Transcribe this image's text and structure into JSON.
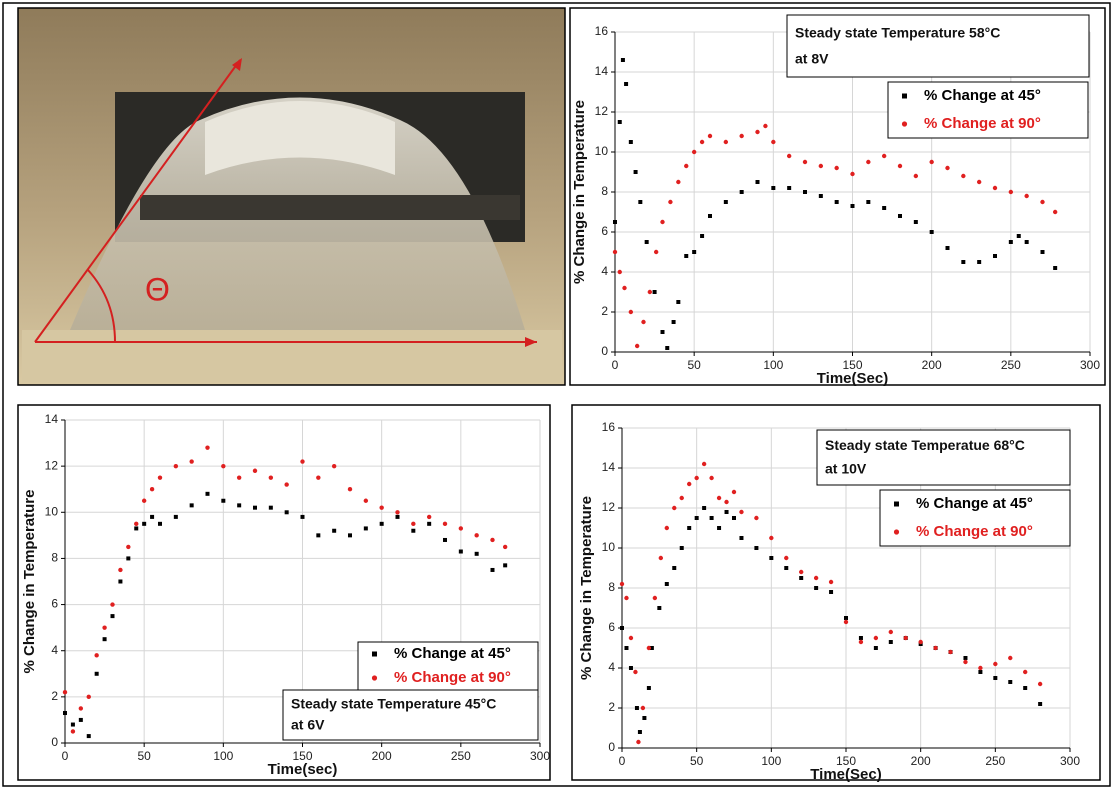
{
  "photo": {
    "label": "Θ"
  },
  "chart_data": [
    {
      "type": "scatter",
      "xlabel": "Time(Sec)",
      "ylabel": "% Change in Temperature",
      "annotation": [
        "Steady state Temperature 58°C",
        "at 8V"
      ],
      "legend": "upper right",
      "grid": true,
      "xlim": [
        0,
        300
      ],
      "ylim": [
        0,
        16
      ],
      "xticks": [
        0,
        50,
        100,
        150,
        200,
        250,
        300
      ],
      "yticks": [
        0,
        2,
        4,
        6,
        8,
        10,
        12,
        14,
        16
      ],
      "series": [
        {
          "name": "% Change at 45°",
          "color": "#000000",
          "x": [
            0,
            3,
            5,
            7,
            10,
            13,
            16,
            20,
            25,
            30,
            33,
            37,
            40,
            45,
            50,
            55,
            60,
            70,
            80,
            90,
            100,
            110,
            120,
            130,
            140,
            150,
            160,
            170,
            180,
            190,
            200,
            210,
            220,
            230,
            240,
            250,
            255,
            260,
            270,
            278
          ],
          "values": [
            6.5,
            11.5,
            14.6,
            13.4,
            10.5,
            9,
            7.5,
            5.5,
            3,
            1,
            0.2,
            1.5,
            2.5,
            4.8,
            5,
            5.8,
            6.8,
            7.5,
            8,
            8.5,
            8.2,
            8.2,
            8,
            7.8,
            7.5,
            7.3,
            7.5,
            7.2,
            6.8,
            6.5,
            6,
            5.2,
            4.5,
            4.5,
            4.8,
            5.5,
            5.8,
            5.5,
            5,
            4.2
          ]
        },
        {
          "name": "% Change at 90°",
          "color": "#e02020",
          "x": [
            0,
            3,
            6,
            10,
            14,
            18,
            22,
            26,
            30,
            35,
            40,
            45,
            50,
            55,
            60,
            70,
            80,
            90,
            95,
            100,
            110,
            120,
            130,
            140,
            150,
            160,
            170,
            180,
            190,
            200,
            210,
            220,
            230,
            240,
            250,
            260,
            270,
            278
          ],
          "values": [
            5,
            4,
            3.2,
            2,
            0.3,
            1.5,
            3,
            5,
            6.5,
            7.5,
            8.5,
            9.3,
            10,
            10.5,
            10.8,
            10.5,
            10.8,
            11,
            11.3,
            10.5,
            9.8,
            9.5,
            9.3,
            9.2,
            8.9,
            9.5,
            9.8,
            9.3,
            8.8,
            9.5,
            9.2,
            8.8,
            8.5,
            8.2,
            8,
            7.8,
            7.5,
            7
          ]
        }
      ]
    },
    {
      "type": "scatter",
      "xlabel": "Time(sec)",
      "ylabel": "% Change in Temperature",
      "annotation": [
        "Steady state Temperature 45°C",
        "at 6V"
      ],
      "legend": "lower right",
      "grid": true,
      "xlim": [
        0,
        300
      ],
      "ylim": [
        0,
        14
      ],
      "xticks": [
        0,
        50,
        100,
        150,
        200,
        250,
        300
      ],
      "yticks": [
        0,
        2,
        4,
        6,
        8,
        10,
        12,
        14
      ],
      "series": [
        {
          "name": "% Change at 45°",
          "color": "#000000",
          "x": [
            0,
            5,
            10,
            15,
            20,
            25,
            30,
            35,
            40,
            45,
            50,
            55,
            60,
            70,
            80,
            90,
            100,
            110,
            120,
            130,
            140,
            150,
            160,
            170,
            180,
            190,
            200,
            210,
            220,
            230,
            240,
            250,
            260,
            270,
            278
          ],
          "values": [
            1.3,
            0.8,
            1,
            0.3,
            3,
            4.5,
            5.5,
            7,
            8,
            9.3,
            9.5,
            9.8,
            9.5,
            9.8,
            10.3,
            10.8,
            10.5,
            10.3,
            10.2,
            10.2,
            10,
            9.8,
            9,
            9.2,
            9,
            9.3,
            9.5,
            9.8,
            9.2,
            9.5,
            8.8,
            8.3,
            8.2,
            7.5,
            7.7
          ]
        },
        {
          "name": "% Change at 90°",
          "color": "#e02020",
          "x": [
            0,
            5,
            10,
            15,
            20,
            25,
            30,
            35,
            40,
            45,
            50,
            55,
            60,
            70,
            80,
            90,
            100,
            110,
            120,
            130,
            140,
            150,
            160,
            170,
            180,
            190,
            200,
            210,
            220,
            230,
            240,
            250,
            260,
            270,
            278
          ],
          "values": [
            2.2,
            0.5,
            1.5,
            2,
            3.8,
            5,
            6,
            7.5,
            8.5,
            9.5,
            10.5,
            11,
            11.5,
            12,
            12.2,
            12.8,
            12,
            11.5,
            11.8,
            11.5,
            11.2,
            12.2,
            11.5,
            12,
            11,
            10.5,
            10.2,
            10,
            9.5,
            9.8,
            9.5,
            9.3,
            9,
            8.8,
            8.5
          ]
        }
      ]
    },
    {
      "type": "scatter",
      "xlabel": "Time(Sec)",
      "ylabel": "% Change in Temperature",
      "annotation": [
        "Steady state Temperatue 68°C",
        "at 10V"
      ],
      "legend": "upper right",
      "grid": true,
      "xlim": [
        0,
        300
      ],
      "ylim": [
        0,
        16
      ],
      "xticks": [
        0,
        50,
        100,
        150,
        200,
        250,
        300
      ],
      "yticks": [
        0,
        2,
        4,
        6,
        8,
        10,
        12,
        14,
        16
      ],
      "series": [
        {
          "name": "% Change at 45°",
          "color": "#000000",
          "x": [
            0,
            3,
            6,
            10,
            12,
            15,
            18,
            20,
            25,
            30,
            35,
            40,
            45,
            50,
            55,
            60,
            65,
            70,
            75,
            80,
            90,
            100,
            110,
            120,
            130,
            140,
            150,
            160,
            170,
            180,
            190,
            200,
            210,
            220,
            230,
            240,
            250,
            260,
            270,
            280
          ],
          "values": [
            6,
            5,
            4,
            2,
            0.8,
            1.5,
            3,
            5,
            7,
            8.2,
            9,
            10,
            11,
            11.5,
            12,
            11.5,
            11,
            11.8,
            11.5,
            10.5,
            10,
            9.5,
            9,
            8.5,
            8,
            7.8,
            6.5,
            5.5,
            5,
            5.3,
            5.5,
            5.2,
            5,
            4.8,
            4.5,
            3.8,
            3.5,
            3.3,
            3,
            2.2
          ]
        },
        {
          "name": "% Change at 90°",
          "color": "#e02020",
          "x": [
            0,
            3,
            6,
            9,
            11,
            14,
            18,
            22,
            26,
            30,
            35,
            40,
            45,
            50,
            55,
            60,
            65,
            70,
            75,
            80,
            90,
            100,
            110,
            120,
            130,
            140,
            150,
            160,
            170,
            180,
            190,
            200,
            210,
            220,
            230,
            240,
            250,
            260,
            270,
            280
          ],
          "values": [
            8.2,
            7.5,
            5.5,
            3.8,
            0.3,
            2,
            5,
            7.5,
            9.5,
            11,
            12,
            12.5,
            13.2,
            13.5,
            14.2,
            13.5,
            12.5,
            12.3,
            12.8,
            11.8,
            11.5,
            10.5,
            9.5,
            8.8,
            8.5,
            8.3,
            6.3,
            5.3,
            5.5,
            5.8,
            5.5,
            5.3,
            5,
            4.8,
            4.3,
            4,
            4.2,
            4.5,
            3.8,
            3.2
          ]
        }
      ]
    }
  ]
}
